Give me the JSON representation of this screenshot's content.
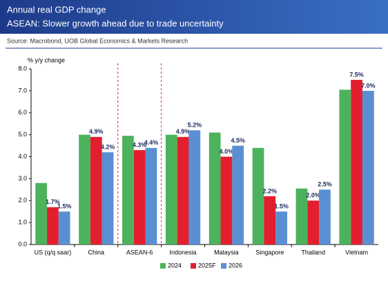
{
  "chart_data": {
    "type": "bar",
    "title": "Annual real GDP change",
    "subtitle": "ASEAN: Slower growth ahead due to trade uncertainty",
    "source": "Source: Macrobond, UOB Global Economics & Markets Research",
    "y_label": "% y/y change",
    "categories": [
      "US (q/q saar)",
      "China",
      "ASEAN-6",
      "Indonesia",
      "Malaysia",
      "Singapore",
      "Thailand",
      "Vietnam"
    ],
    "series": [
      {
        "name": "2024",
        "color": "#4cb35c",
        "values": [
          2.8,
          5.0,
          4.95,
          5.0,
          5.1,
          4.4,
          2.55,
          7.05
        ]
      },
      {
        "name": "2025F",
        "color": "#e31f2f",
        "values": [
          1.7,
          4.9,
          4.3,
          4.9,
          4.0,
          2.2,
          2.0,
          7.5
        ],
        "value_labels": [
          "1.7%",
          "4.9%",
          "4.3%",
          "4.9%",
          "4.0%",
          "2.2%",
          "2.0%",
          "7.5%"
        ]
      },
      {
        "name": "2026",
        "color": "#5b8fd3",
        "values": [
          1.5,
          4.2,
          4.4,
          5.2,
          4.5,
          1.5,
          2.5,
          7.0
        ],
        "value_labels": [
          "1.5%",
          "4.2%",
          "4.4%",
          "5.2%",
          "4.5%",
          "1.5%",
          "2.5%",
          "7.0%"
        ]
      }
    ],
    "ylim": [
      0,
      8
    ],
    "yticks": [
      {
        "value": 0,
        "label": "0.0"
      },
      {
        "value": 1,
        "label": "1.0"
      },
      {
        "value": 2,
        "label": "2.0"
      },
      {
        "value": 3,
        "label": "3.0"
      },
      {
        "value": 4,
        "label": "4.0"
      },
      {
        "value": 5,
        "label": "5.0"
      },
      {
        "value": 6,
        "label": "6.0"
      },
      {
        "value": 7,
        "label": "7.0"
      },
      {
        "value": 8,
        "label": "8.0"
      }
    ],
    "grid": false,
    "legend": "bottom"
  }
}
